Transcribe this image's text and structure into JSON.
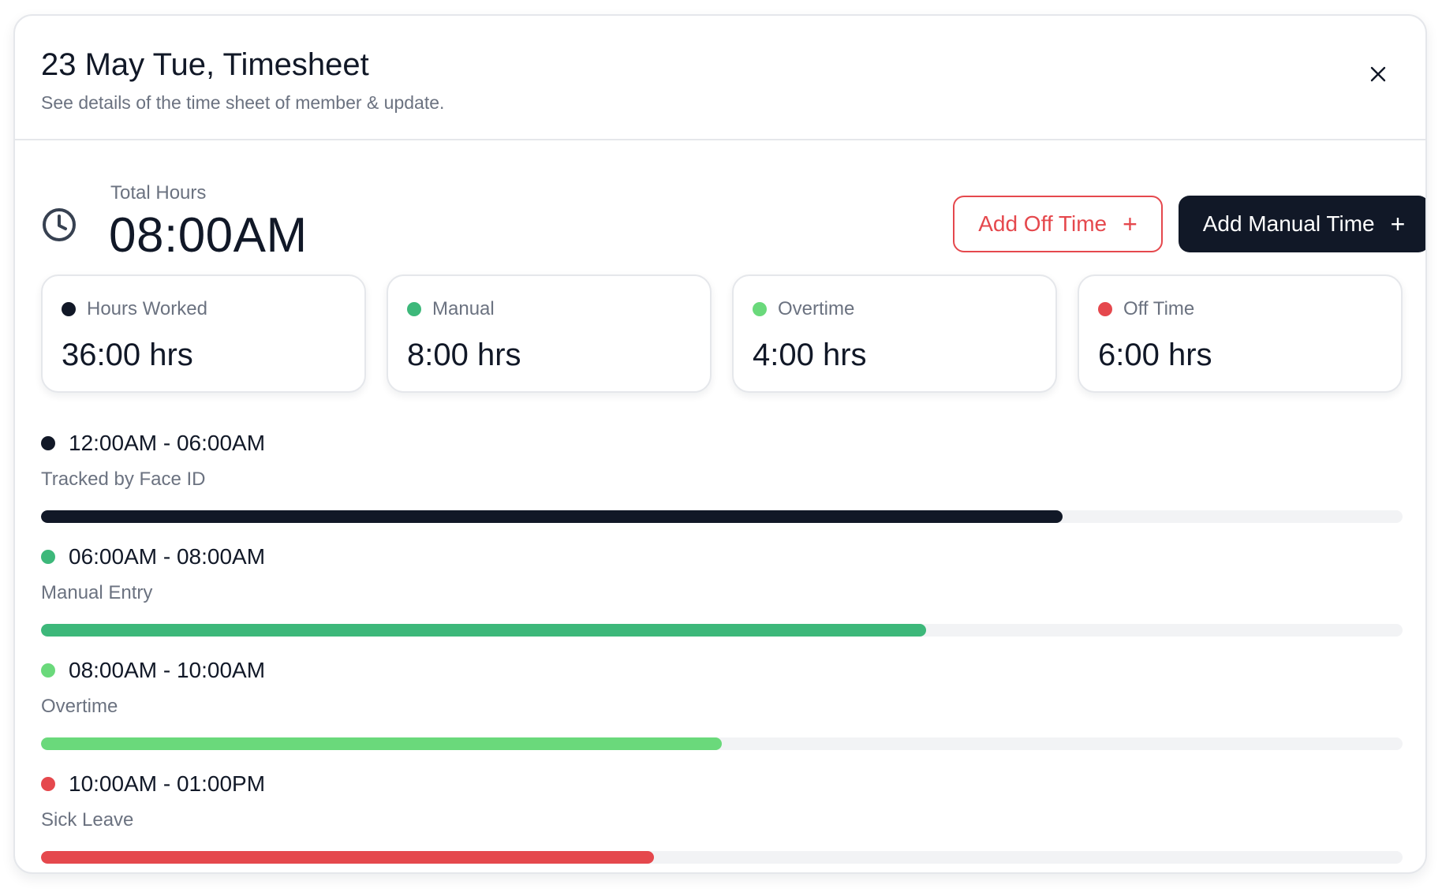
{
  "header": {
    "title": "23 May Tue, Timesheet",
    "subtitle": "See details of the time sheet of member & update.",
    "close_icon": "close-icon"
  },
  "total": {
    "label": "Total Hours",
    "value": "08:00AM",
    "icon": "clock-icon"
  },
  "actions": {
    "add_off_time_label": "Add Off Time",
    "add_manual_time_label": "Add Manual Time",
    "plus_glyph": "+"
  },
  "colors": {
    "dark": "#111827",
    "manual": "#3db87a",
    "overtime": "#6ad97b",
    "off": "#e5484d"
  },
  "stats": [
    {
      "label": "Hours Worked",
      "value": "36:00 hrs",
      "color": "#111827"
    },
    {
      "label": "Manual",
      "value": "8:00 hrs",
      "color": "#3db87a"
    },
    {
      "label": "Overtime",
      "value": "4:00 hrs",
      "color": "#6ad97b"
    },
    {
      "label": "Off Time",
      "value": "6:00 hrs",
      "color": "#e5484d"
    }
  ],
  "entries": [
    {
      "range": "12:00AM - 06:00AM",
      "label": "Tracked by Face ID",
      "progress": 0.75,
      "color": "#111827"
    },
    {
      "range": "06:00AM - 08:00AM",
      "label": "Manual Entry",
      "progress": 0.65,
      "color": "#3db87a"
    },
    {
      "range": "08:00AM - 10:00AM",
      "label": "Overtime",
      "progress": 0.5,
      "color": "#6ad97b"
    },
    {
      "range": "10:00AM - 01:00PM",
      "label": "Sick Leave",
      "progress": 0.45,
      "color": "#e5484d"
    }
  ]
}
